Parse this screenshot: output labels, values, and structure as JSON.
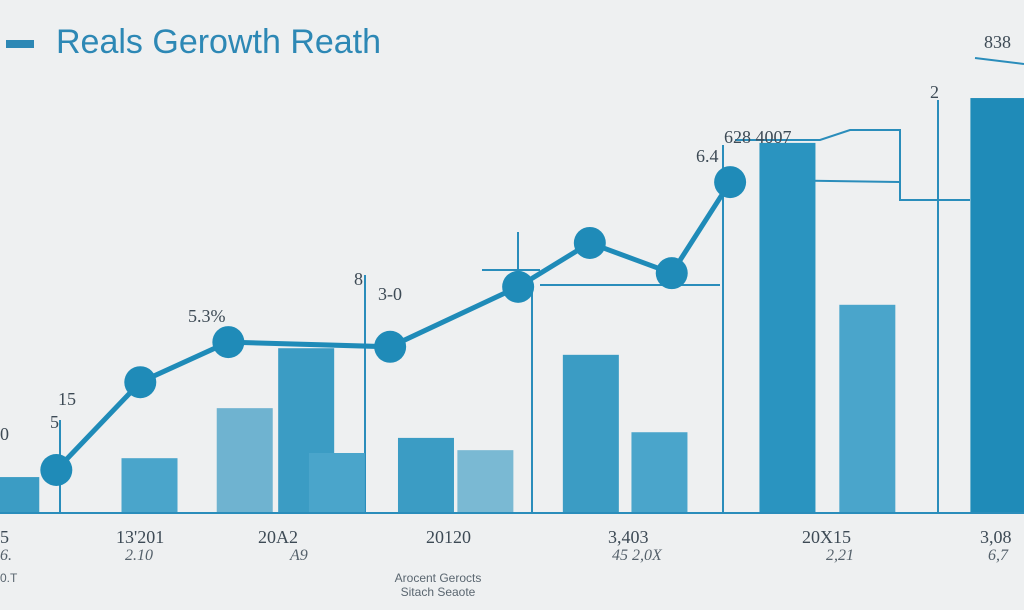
{
  "chart_data": {
    "type": "bar",
    "title": "Reals Gerowth Reath",
    "xlim": [
      0,
      100
    ],
    "ylim": [
      0,
      100
    ],
    "bars": {
      "x": [
        1.1,
        14.6,
        23.9,
        29.9,
        32.9,
        41.6,
        47.4,
        57.7,
        64.4,
        76.9,
        84.7,
        97.5
      ],
      "values": [
        7.4,
        11.4,
        22,
        34.7,
        12.5,
        15.7,
        13.1,
        33.3,
        16.9,
        78.2,
        43.9,
        87.7
      ],
      "colors": [
        "#3b9cc4",
        "#4aa5cb",
        "#6fb3d0",
        "#3b9cc4",
        "#4aa5cb",
        "#3b9cc4",
        "#7ab9d3",
        "#3b9cc4",
        "#4aa5cb",
        "#2a94c0",
        "#4aa5cb",
        "#1f8bb8"
      ]
    },
    "line": {
      "color": "#1f8bb8",
      "x": [
        5.5,
        13.7,
        22.3,
        38.1,
        50.6,
        57.6,
        65.6,
        71.3
      ],
      "values": [
        8.9,
        27.5,
        36,
        35,
        47.7,
        57,
        50.6,
        69.9
      ]
    },
    "annotations": [
      "5.3%",
      "3-0",
      "8",
      "5",
      "15",
      "0",
      "628  4007",
      "6.4",
      "2",
      "838"
    ],
    "x_labels": [
      "5",
      "13'201",
      "20A2",
      "20120",
      "3,403",
      "20X15",
      "3,08"
    ],
    "x_sublabels": [
      "6.",
      "2.10",
      "A9",
      null,
      "45 2,0X",
      "2,21",
      "6,7"
    ],
    "footnote": "0.T",
    "source": "Arocent Gerocts",
    "source_sub": "Sitach Seaote"
  }
}
